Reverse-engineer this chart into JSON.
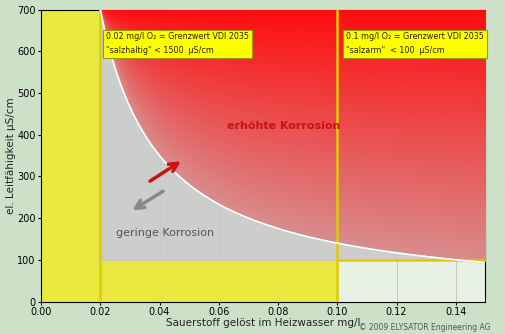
{
  "title": "",
  "xlabel": "Sauerstoff gelöst im Heizwasser mg/l",
  "ylabel": "el. Leitfähigkeit μS/cm",
  "xlim": [
    0,
    0.15
  ],
  "ylim": [
    0,
    700
  ],
  "xticks": [
    0,
    0.02,
    0.04,
    0.06,
    0.08,
    0.1,
    0.12,
    0.14
  ],
  "yticks": [
    0,
    100,
    200,
    300,
    400,
    500,
    600,
    700
  ],
  "bg_color": "#cde0c8",
  "plot_bg": "#e8f2e4",
  "yellow_color": "#e8e840",
  "vline1_x": 0.02,
  "vline2_x": 0.1,
  "hline_y": 100,
  "vline_color": "#ddcc00",
  "grid_color": "#bbbbbb",
  "copyright": "© 2009 ELYSATOR Engineering AG",
  "box1_line1": "0.02 mg/l O",
  "box1_line1b": "2",
  "box1_line1c": " = Grenzwert VDI 2035",
  "box1_line2": "\"salzhaltig\" < 1500  μS/cm",
  "box2_line1": "0.1 mg/l O",
  "box2_line1b": "2",
  "box2_line1c": " = Grenzwert VDI 2035",
  "box2_line2": "\"salzarm\"  < 100  μS/cm",
  "label_erhoehte": "erhöhte Korrosion",
  "label_geringe": "geringe Korrosion",
  "k_hyperbola": 14.0
}
